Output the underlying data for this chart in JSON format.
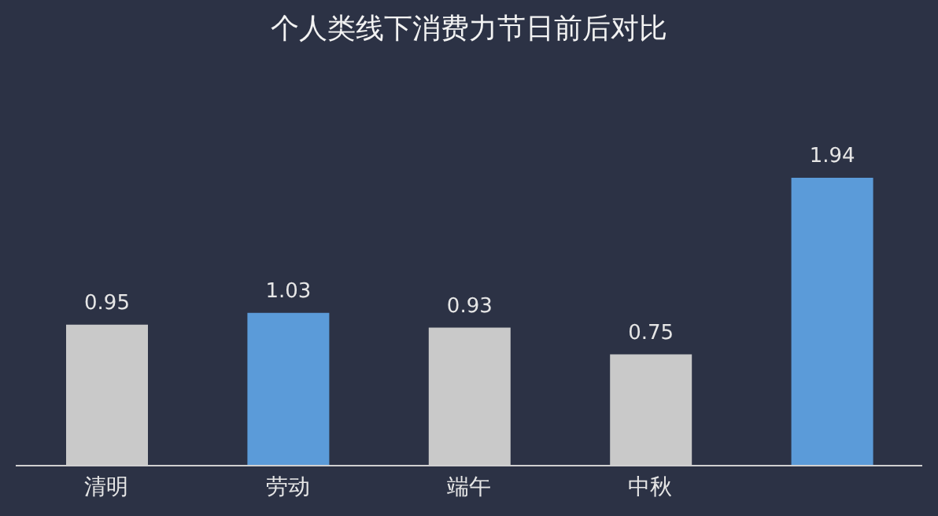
{
  "chart_data": {
    "type": "bar",
    "title": "个人类线下消费力节日前后对比",
    "categories": [
      "清明",
      "劳动",
      "端午",
      "中秋",
      null
    ],
    "values": [
      0.95,
      1.03,
      0.93,
      0.75,
      1.94
    ],
    "colors": [
      "#c9c9c9",
      "#5b9bd9",
      "#c9c9c9",
      "#c9c9c9",
      "#5b9bd9"
    ],
    "data_labels": true
  }
}
